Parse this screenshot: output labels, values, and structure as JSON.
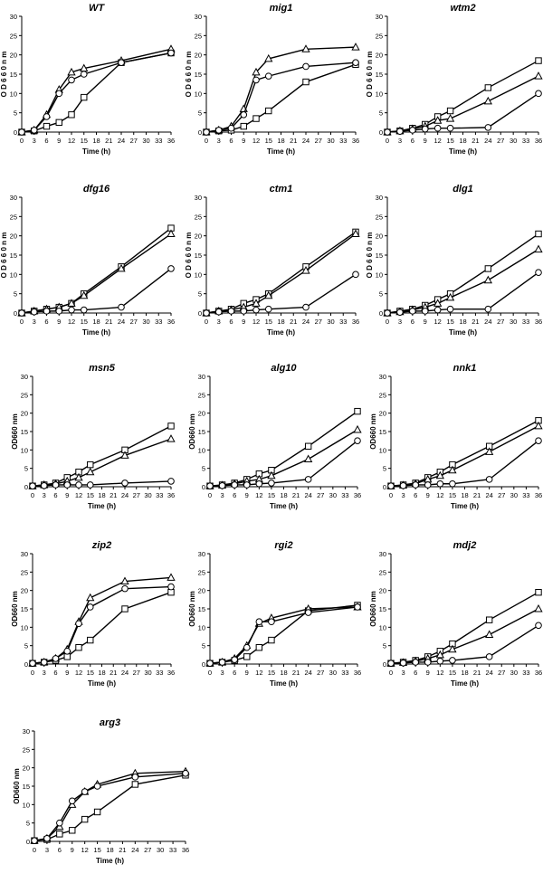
{
  "chart_data": [
    {
      "type": "line",
      "title": "WT",
      "xlabel": "Time (h)",
      "ylabel": "O D 6 6 0  n m",
      "x": [
        0,
        3,
        6,
        9,
        12,
        15,
        24,
        36
      ],
      "x_ticks": [
        "0",
        "3",
        "6",
        "9",
        "12",
        "15",
        "18",
        "21",
        "24",
        "27",
        "30",
        "33",
        "36"
      ],
      "y_ticks": [
        "0",
        "5",
        "10",
        "15",
        "20",
        "25",
        "30"
      ],
      "xlim": [
        0,
        36
      ],
      "ylim": [
        0,
        30
      ],
      "series": [
        {
          "marker": "square",
          "values": [
            0,
            0.3,
            1.5,
            2.5,
            4.5,
            9,
            18,
            20.5
          ]
        },
        {
          "marker": "triangle",
          "values": [
            0,
            0.5,
            4.5,
            11,
            15.5,
            16.5,
            18.5,
            21.5
          ]
        },
        {
          "marker": "circle",
          "values": [
            0,
            0.5,
            4,
            10,
            13.5,
            15,
            18,
            20.5
          ]
        }
      ]
    },
    {
      "type": "line",
      "title": "mig1",
      "xlabel": "Time (h)",
      "ylabel": "O D 6 6 0  n m",
      "x": [
        0,
        3,
        6,
        9,
        12,
        15,
        24,
        36
      ],
      "x_ticks": [
        "0",
        "3",
        "6",
        "9",
        "12",
        "15",
        "18",
        "21",
        "24",
        "27",
        "30",
        "33",
        "36"
      ],
      "y_ticks": [
        "0",
        "5",
        "10",
        "15",
        "20",
        "25",
        "30"
      ],
      "xlim": [
        0,
        36
      ],
      "ylim": [
        0,
        30
      ],
      "series": [
        {
          "marker": "square",
          "values": [
            0,
            0.3,
            0.5,
            1.5,
            3.5,
            5.5,
            13,
            17.5
          ]
        },
        {
          "marker": "triangle",
          "values": [
            0,
            0.5,
            1.5,
            6,
            15.5,
            19,
            21.5,
            22
          ]
        },
        {
          "marker": "circle",
          "values": [
            0,
            0.5,
            1,
            4.5,
            13.5,
            14.5,
            17,
            18
          ]
        }
      ]
    },
    {
      "type": "line",
      "title": "wtm2",
      "xlabel": "Time (h)",
      "ylabel": "O D 6 6 0  n m",
      "x": [
        0,
        3,
        6,
        9,
        12,
        15,
        24,
        36
      ],
      "x_ticks": [
        "0",
        "3",
        "6",
        "9",
        "12",
        "15",
        "18",
        "21",
        "24",
        "27",
        "30",
        "33",
        "36"
      ],
      "y_ticks": [
        "0",
        "5",
        "10",
        "15",
        "20",
        "25",
        "30"
      ],
      "xlim": [
        0,
        36
      ],
      "ylim": [
        0,
        30
      ],
      "series": [
        {
          "marker": "square",
          "values": [
            0,
            0.3,
            1,
            2,
            4,
            5.5,
            11.5,
            18.5
          ]
        },
        {
          "marker": "triangle",
          "values": [
            0,
            0.3,
            0.8,
            1.5,
            3,
            3.5,
            8,
            14.5
          ]
        },
        {
          "marker": "circle",
          "values": [
            0,
            0.2,
            0.5,
            0.8,
            1,
            1,
            1.2,
            10
          ]
        }
      ]
    },
    {
      "type": "line",
      "title": "dfg16",
      "xlabel": "Time (h)",
      "ylabel": "O D 6 6 0  n m",
      "x": [
        0,
        3,
        6,
        9,
        12,
        15,
        24,
        36
      ],
      "x_ticks": [
        "0",
        "3",
        "6",
        "9",
        "12",
        "15",
        "18",
        "21",
        "24",
        "27",
        "30",
        "33",
        "36"
      ],
      "y_ticks": [
        "0",
        "5",
        "10",
        "15",
        "20",
        "25",
        "30"
      ],
      "xlim": [
        0,
        36
      ],
      "ylim": [
        0,
        30
      ],
      "series": [
        {
          "marker": "square",
          "values": [
            0,
            0.5,
            1,
            1.5,
            2.5,
            5,
            12,
            22
          ]
        },
        {
          "marker": "triangle",
          "values": [
            0,
            0.5,
            1,
            1.5,
            2.5,
            4.5,
            11.5,
            20.5
          ]
        },
        {
          "marker": "circle",
          "values": [
            0,
            0.3,
            0.5,
            0.5,
            0.8,
            0.8,
            1.5,
            11.5
          ]
        }
      ]
    },
    {
      "type": "line",
      "title": "ctm1",
      "xlabel": "Time (h)",
      "ylabel": "O D 6 6 0  n m",
      "x": [
        0,
        3,
        6,
        9,
        12,
        15,
        24,
        36
      ],
      "x_ticks": [
        "0",
        "3",
        "6",
        "9",
        "12",
        "15",
        "18",
        "21",
        "24",
        "27",
        "30",
        "33",
        "36"
      ],
      "y_ticks": [
        "0",
        "5",
        "10",
        "15",
        "20",
        "25",
        "30"
      ],
      "xlim": [
        0,
        36
      ],
      "ylim": [
        0,
        30
      ],
      "series": [
        {
          "marker": "square",
          "values": [
            0,
            0.5,
            1,
            2.5,
            3.5,
            5,
            12,
            21
          ]
        },
        {
          "marker": "triangle",
          "values": [
            0,
            0.5,
            0.8,
            1.5,
            2.5,
            4.5,
            11,
            20.5
          ]
        },
        {
          "marker": "circle",
          "values": [
            0,
            0.3,
            0.5,
            0.5,
            0.8,
            1,
            1.5,
            10
          ]
        }
      ]
    },
    {
      "type": "line",
      "title": "dlg1",
      "xlabel": "Time (h)",
      "ylabel": "O D 6 6 0  n m",
      "x": [
        0,
        3,
        6,
        9,
        12,
        15,
        24,
        36
      ],
      "x_ticks": [
        "0",
        "3",
        "6",
        "9",
        "12",
        "15",
        "18",
        "21",
        "24",
        "27",
        "30",
        "33",
        "36"
      ],
      "y_ticks": [
        "0",
        "5",
        "10",
        "15",
        "20",
        "25",
        "30"
      ],
      "xlim": [
        0,
        36
      ],
      "ylim": [
        0,
        30
      ],
      "series": [
        {
          "marker": "square",
          "values": [
            0,
            0.5,
            1,
            2,
            3.5,
            5,
            11.5,
            20.5
          ]
        },
        {
          "marker": "triangle",
          "values": [
            0,
            0.3,
            0.8,
            1.5,
            2.5,
            4,
            8.5,
            16.5
          ]
        },
        {
          "marker": "circle",
          "values": [
            0,
            0.2,
            0.5,
            0.5,
            0.8,
            1,
            1,
            10.5
          ]
        }
      ]
    },
    {
      "type": "line",
      "title": "msn5",
      "xlabel": "Time (h)",
      "ylabel": "OD660 nm",
      "x": [
        0,
        3,
        6,
        9,
        12,
        15,
        24,
        36
      ],
      "x_ticks": [
        "0",
        "3",
        "6",
        "9",
        "12",
        "15",
        "18",
        "21",
        "24",
        "27",
        "30",
        "33",
        "36"
      ],
      "y_ticks": [
        "0",
        "5",
        "10",
        "15",
        "20",
        "25",
        "30"
      ],
      "xlim": [
        0,
        36
      ],
      "ylim": [
        0,
        30
      ],
      "series": [
        {
          "marker": "square",
          "values": [
            0.2,
            0.5,
            1,
            2.5,
            4,
            6,
            10,
            16.5
          ]
        },
        {
          "marker": "triangle",
          "values": [
            0.2,
            0.5,
            0.8,
            1.5,
            2.5,
            4,
            8.5,
            13
          ]
        },
        {
          "marker": "circle",
          "values": [
            0.2,
            0.3,
            0.5,
            0.5,
            0.5,
            0.5,
            1,
            1.5
          ]
        }
      ]
    },
    {
      "type": "line",
      "title": "alg10",
      "xlabel": "Time (h)",
      "ylabel": "OD660 nm",
      "x": [
        0,
        3,
        6,
        9,
        12,
        15,
        24,
        36
      ],
      "x_ticks": [
        "0",
        "3",
        "6",
        "9",
        "12",
        "15",
        "18",
        "21",
        "24",
        "27",
        "30",
        "33",
        "36"
      ],
      "y_ticks": [
        "0",
        "5",
        "10",
        "15",
        "20",
        "25",
        "30"
      ],
      "xlim": [
        0,
        36
      ],
      "ylim": [
        0,
        30
      ],
      "series": [
        {
          "marker": "square",
          "values": [
            0.2,
            0.5,
            1,
            2,
            3.5,
            4.5,
            11,
            20.5
          ]
        },
        {
          "marker": "triangle",
          "values": [
            0.2,
            0.4,
            0.8,
            1.5,
            2,
            3,
            7.5,
            15.5
          ]
        },
        {
          "marker": "circle",
          "values": [
            0.2,
            0.3,
            0.5,
            0.5,
            0.8,
            1,
            2,
            12.5
          ]
        }
      ]
    },
    {
      "type": "line",
      "title": "nnk1",
      "xlabel": "Time (h)",
      "ylabel": "OD660 nm",
      "x": [
        0,
        3,
        6,
        9,
        12,
        15,
        24,
        36
      ],
      "x_ticks": [
        "0",
        "3",
        "6",
        "9",
        "12",
        "15",
        "18",
        "21",
        "24",
        "27",
        "30",
        "33",
        "36"
      ],
      "y_ticks": [
        "0",
        "5",
        "10",
        "15",
        "20",
        "25",
        "30"
      ],
      "xlim": [
        0,
        36
      ],
      "ylim": [
        0,
        30
      ],
      "series": [
        {
          "marker": "square",
          "values": [
            0.2,
            0.5,
            1,
            2.5,
            4,
            6,
            11,
            18
          ]
        },
        {
          "marker": "triangle",
          "values": [
            0.2,
            0.4,
            0.8,
            2,
            3,
            4.5,
            9.5,
            16.5
          ]
        },
        {
          "marker": "circle",
          "values": [
            0.2,
            0.3,
            0.5,
            0.5,
            0.8,
            0.8,
            2,
            12.5
          ]
        }
      ]
    },
    {
      "type": "line",
      "title": "zip2",
      "xlabel": "Time (h)",
      "ylabel": "OD660 nm",
      "x": [
        0,
        3,
        6,
        9,
        12,
        15,
        24,
        36
      ],
      "x_ticks": [
        "0",
        "3",
        "6",
        "9",
        "12",
        "15",
        "18",
        "21",
        "24",
        "27",
        "30",
        "33",
        "36"
      ],
      "y_ticks": [
        "0",
        "5",
        "10",
        "15",
        "20",
        "25",
        "30"
      ],
      "xlim": [
        0,
        36
      ],
      "ylim": [
        0,
        30
      ],
      "series": [
        {
          "marker": "square",
          "values": [
            0.2,
            0.5,
            1,
            2,
            4.5,
            6.5,
            15,
            19.5
          ]
        },
        {
          "marker": "triangle",
          "values": [
            0.2,
            0.5,
            1.5,
            4,
            11.5,
            18,
            22.5,
            23.5
          ]
        },
        {
          "marker": "circle",
          "values": [
            0.2,
            0.5,
            1.5,
            3.5,
            11,
            15.5,
            20.5,
            21
          ]
        }
      ]
    },
    {
      "type": "line",
      "title": "rgi2",
      "xlabel": "Time (h)",
      "ylabel": "OD660 nm",
      "x": [
        0,
        3,
        6,
        9,
        12,
        15,
        24,
        36
      ],
      "x_ticks": [
        "0",
        "3",
        "6",
        "9",
        "12",
        "15",
        "18",
        "21",
        "24",
        "27",
        "30",
        "33",
        "36"
      ],
      "y_ticks": [
        "0",
        "5",
        "10",
        "15",
        "20",
        "25",
        "30"
      ],
      "xlim": [
        0,
        36
      ],
      "ylim": [
        0,
        30
      ],
      "series": [
        {
          "marker": "square",
          "values": [
            0.2,
            0.5,
            1,
            2,
            4.5,
            6.5,
            14.5,
            16
          ]
        },
        {
          "marker": "triangle",
          "values": [
            0.2,
            0.5,
            1.5,
            5,
            11,
            12.5,
            15,
            15.5
          ]
        },
        {
          "marker": "circle",
          "values": [
            0.2,
            0.5,
            1.2,
            4.5,
            11.5,
            11.5,
            14,
            15.5
          ]
        }
      ]
    },
    {
      "type": "line",
      "title": "mdj2",
      "xlabel": "Time (h)",
      "ylabel": "OD660 nm",
      "x": [
        0,
        3,
        6,
        9,
        12,
        15,
        24,
        36
      ],
      "x_ticks": [
        "0",
        "3",
        "6",
        "9",
        "12",
        "15",
        "18",
        "21",
        "24",
        "27",
        "30",
        "33",
        "36"
      ],
      "y_ticks": [
        "0",
        "5",
        "10",
        "15",
        "20",
        "25",
        "30"
      ],
      "xlim": [
        0,
        36
      ],
      "ylim": [
        0,
        30
      ],
      "series": [
        {
          "marker": "square",
          "values": [
            0.2,
            0.5,
            1,
            2,
            3.5,
            5.5,
            12,
            19.5
          ]
        },
        {
          "marker": "triangle",
          "values": [
            0.2,
            0.4,
            0.8,
            1.5,
            2.5,
            4,
            8,
            15
          ]
        },
        {
          "marker": "circle",
          "values": [
            0.2,
            0.3,
            0.5,
            0.5,
            0.8,
            1,
            2,
            10.5
          ]
        }
      ]
    },
    {
      "type": "line",
      "title": "arg3",
      "xlabel": "Time (h)",
      "ylabel": "OD660 nm",
      "x": [
        0,
        3,
        6,
        9,
        12,
        15,
        24,
        36
      ],
      "x_ticks": [
        "0",
        "3",
        "6",
        "9",
        "12",
        "15",
        "18",
        "21",
        "24",
        "27",
        "30",
        "33",
        "36"
      ],
      "y_ticks": [
        "0",
        "5",
        "10",
        "15",
        "20",
        "25",
        "30"
      ],
      "xlim": [
        0,
        36
      ],
      "ylim": [
        0,
        30
      ],
      "series": [
        {
          "marker": "square",
          "values": [
            0.2,
            0.5,
            2,
            3,
            6,
            8,
            15.5,
            18
          ]
        },
        {
          "marker": "triangle",
          "values": [
            0.2,
            0.8,
            4,
            10,
            13.5,
            15.5,
            18.5,
            19
          ]
        },
        {
          "marker": "circle",
          "values": [
            0.2,
            0.8,
            5,
            11,
            13.5,
            15,
            17.5,
            18.5
          ]
        }
      ]
    }
  ]
}
